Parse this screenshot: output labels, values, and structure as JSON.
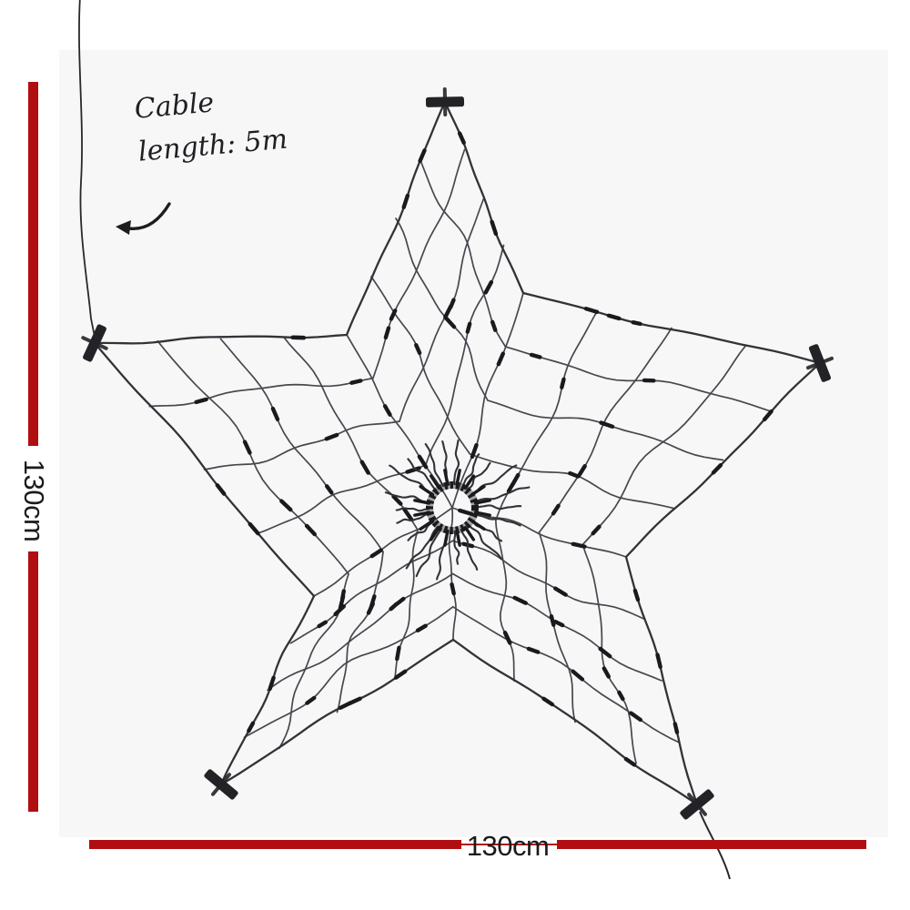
{
  "figure": {
    "name": "star net light product photo with dimensions"
  },
  "annotations": {
    "cable_note": {
      "line1": "Cable",
      "line2": "length: 5m"
    },
    "height_label": "130cm",
    "width_label": "130cm"
  },
  "colors": {
    "dimension_red": "#b10e11",
    "text_ink": "#1b1b1b",
    "photo_background": "#f7f7f8",
    "net_wire": "#47474d",
    "net_outline": "#323237",
    "net_bulb": "#1a1a1e",
    "clip_black": "#232327",
    "cable": "#28282c"
  }
}
